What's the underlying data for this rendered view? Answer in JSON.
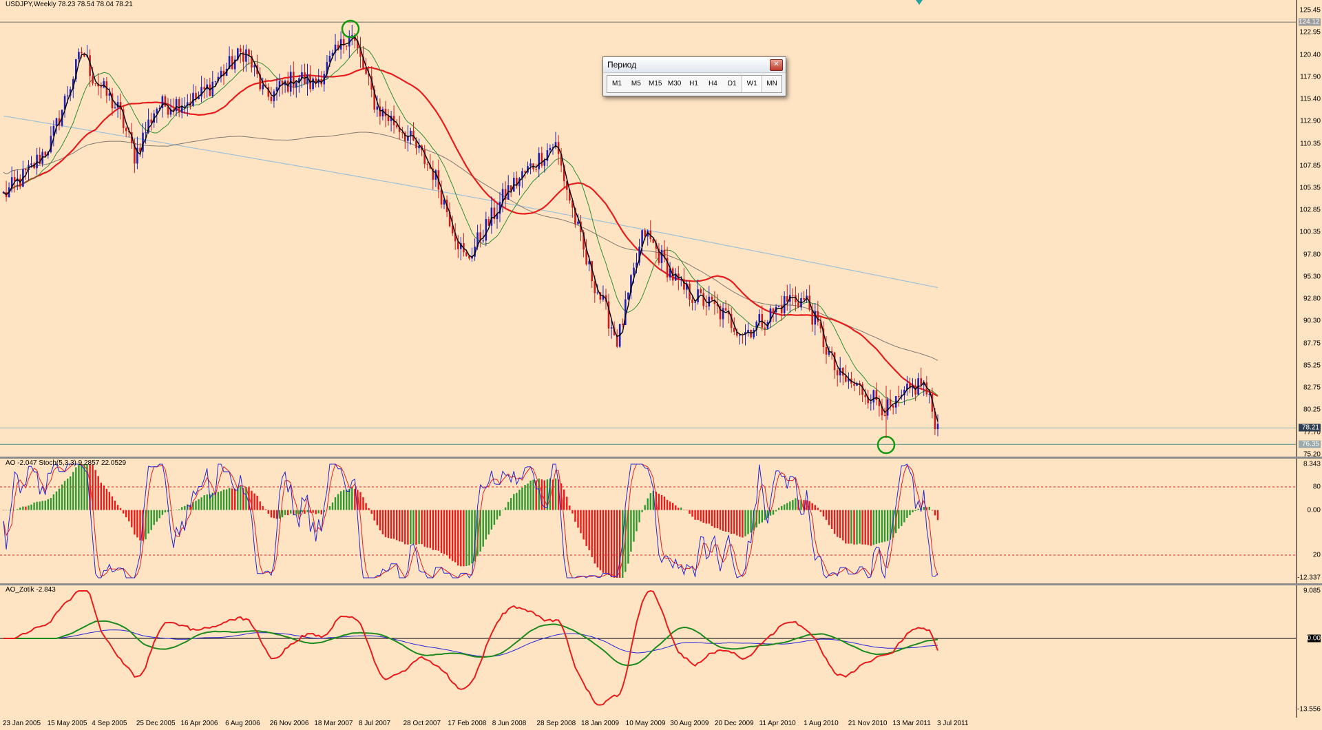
{
  "main": {
    "label": "USDJPY,Weekly  78.23 78.54 78.04 78.21",
    "axis_ticks": [
      "125.45",
      "122.95",
      "120.40",
      "117.90",
      "115.40",
      "112.90",
      "110.35",
      "107.85",
      "105.35",
      "102.85",
      "100.35",
      "97.80",
      "95.30",
      "92.80",
      "90.30",
      "87.75",
      "85.25",
      "82.75",
      "80.25",
      "77.70",
      "75.20"
    ],
    "price_tags": [
      "124.12",
      "78.21",
      "76.35"
    ],
    "colors": {
      "bull": "#1f1fb4",
      "bear": "#c81e1e",
      "ema_red": "#e81c1c",
      "ma_green": "#2e8b2e",
      "ma_gray": "#807870",
      "ma_blue": "#9dc0d8",
      "level": "#707070",
      "circle": "#119911"
    }
  },
  "ao_stoch": {
    "label": "AO -2.047  Stoch(5,3,3) 9.2857 22.0529",
    "axis_ticks": [
      "8.343",
      "80",
      "0.00",
      "20",
      "-12.337"
    ],
    "colors": {
      "up": "#2e9a2e",
      "down": "#e81c1c",
      "stoch_main": "#2323d2",
      "stoch_signal": "#e42020",
      "level": "#e42020"
    }
  },
  "ao_zotik": {
    "label": "AO_Zotik -2.843",
    "axis_ticks": [
      "9.085",
      "0.00",
      "-13.556"
    ],
    "colors": {
      "red": "#e81c1c",
      "green": "#1c8a1c",
      "blue": "#2424d8"
    }
  },
  "x_axis": [
    "23 Jan 2005",
    "15 May 2005",
    "4 Sep 2005",
    "25 Dec 2005",
    "16 Apr 2006",
    "6 Aug 2006",
    "26 Nov 2006",
    "18 Mar 2007",
    "8 Jul 2007",
    "28 Oct 2007",
    "17 Feb 2008",
    "8 Jun 2008",
    "28 Sep 2008",
    "18 Jan 2009",
    "10 May 2009",
    "30 Aug 2009",
    "20 Dec 2009",
    "11 Apr 2010",
    "1 Aug 2010",
    "21 Nov 2010",
    "13 Mar 2011",
    "3 Jul 2011"
  ],
  "dialog": {
    "title": "Период",
    "close_icon": "close-icon",
    "timeframes": [
      "M1",
      "M5",
      "M15",
      "M30",
      "H1",
      "H4",
      "D1",
      "W1",
      "MN"
    ],
    "active": "W1"
  },
  "chart_data": [
    {
      "type": "candlestick",
      "symbol": "USDJPY",
      "timeframe": "Weekly",
      "ohlc_last": {
        "open": 78.23,
        "high": 78.54,
        "low": 78.04,
        "close": 78.21
      },
      "ylim": [
        75.2,
        125.45
      ],
      "levels": [
        124.12,
        76.35
      ],
      "x_start": "23 Jan 2005",
      "x_end": "3 Jul 2011",
      "close_path": [
        {
          "x": "23 Jan 2005",
          "y": 104.5
        },
        {
          "x": "15 May 2005",
          "y": 107.5
        },
        {
          "x": "4 Sep 2005",
          "y": 110.5
        },
        {
          "x": "25 Dec 2005",
          "y": 118.0
        },
        {
          "x": "16 Apr 2006",
          "y": 114.5
        },
        {
          "x": "6 Aug 2006",
          "y": 114.8
        },
        {
          "x": "26 Nov 2006",
          "y": 117.0
        },
        {
          "x": "18 Mar 2007",
          "y": 117.6
        },
        {
          "x": "8 Jul 2007",
          "y": 123.0
        },
        {
          "x": "28 Oct 2007",
          "y": 114.5
        },
        {
          "x": "17 Feb 2008",
          "y": 105.5
        },
        {
          "x": "8 Jun 2008",
          "y": 107.0
        },
        {
          "x": "28 Sep 2008",
          "y": 105.5
        },
        {
          "x": "18 Jan 2009",
          "y": 90.0
        },
        {
          "x": "10 May 2009",
          "y": 97.0
        },
        {
          "x": "30 Aug 2009",
          "y": 93.0
        },
        {
          "x": "20 Dec 2009",
          "y": 90.5
        },
        {
          "x": "11 Apr 2010",
          "y": 93.5
        },
        {
          "x": "1 Aug 2010",
          "y": 86.5
        },
        {
          "x": "21 Nov 2010",
          "y": 82.5
        },
        {
          "x": "13 Mar 2011",
          "y": 82.8
        },
        {
          "x": "3 Jul 2011",
          "y": 78.2
        }
      ]
    },
    {
      "type": "histogram+line",
      "name": "AO / Stoch(5,3,3)",
      "ao_last": -2.047,
      "stoch_main_last": 9.2857,
      "stoch_signal_last": 22.0529,
      "ylim": [
        -12.337,
        8.343
      ],
      "levels": [
        80,
        20
      ]
    },
    {
      "type": "line",
      "name": "AO_Zotik",
      "last": -2.843,
      "ylim": [
        -13.556,
        9.085
      ]
    }
  ]
}
